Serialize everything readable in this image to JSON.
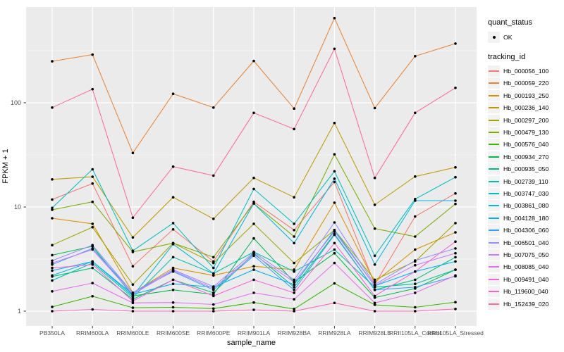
{
  "figure": {
    "xlabel": "sample_name",
    "ylabel": "FPKM + 1",
    "legend_title_1": "quant_status",
    "legend_item_1": "OK",
    "legend_title_2": "tracking_id"
  },
  "colors": {
    "panel_background": "#EBEBEB",
    "gridline": "#FFFFFF",
    "axis_text": "#4D4D4D",
    "tick_mark": "#333333",
    "point": "#000000",
    "legend_key_background": "#F2F2F2"
  },
  "chart_data": {
    "type": "line",
    "title": "",
    "xlabel": "sample_name",
    "ylabel": "FPKM + 1",
    "y_scale": "log10",
    "y_ticks": [
      1,
      10,
      100
    ],
    "y_minor_ticks": [
      3.162,
      31.62,
      316.2
    ],
    "ylim": [
      0.72,
      830
    ],
    "grid": true,
    "legend_position": "right",
    "quant_status_values": [
      "OK"
    ],
    "categories": [
      "PB350LA",
      "RRIM600LA",
      "RRIM600LE",
      "RRIM600SE",
      "RRIM600PE",
      "RRIM901LA",
      "RRIM928BA",
      "RRIM928LA",
      "RRIM928LE",
      "RRII105LA_Control",
      "RRII105LA_Stressed"
    ],
    "series": [
      {
        "name": "Hb_000056_100",
        "color": "#F8766D",
        "values": [
          11.8,
          16.8,
          2.7,
          6.1,
          3.0,
          11.2,
          6.0,
          17.4,
          1.8,
          8.1,
          13.5
        ]
      },
      {
        "name": "Hb_000059_220",
        "color": "#EA8331",
        "values": [
          250,
          290,
          33,
          122,
          90,
          252,
          88,
          650,
          89,
          280,
          370
        ]
      },
      {
        "name": "Hb_000193_250",
        "color": "#D89000",
        "values": [
          7.8,
          6.9,
          1.5,
          2.6,
          2.2,
          2.7,
          2.5,
          11.0,
          1.9,
          3.9,
          5.7
        ]
      },
      {
        "name": "Hb_000236_140",
        "color": "#C09B00",
        "values": [
          18.4,
          19.5,
          5.1,
          12.4,
          7.7,
          19.0,
          12.4,
          64,
          10.5,
          19.6,
          24
        ]
      },
      {
        "name": "Hb_000297_200",
        "color": "#A3A500",
        "values": [
          4.3,
          6.4,
          1.8,
          4.5,
          2.9,
          6.9,
          2.9,
          6.0,
          2.0,
          3.0,
          7.0
        ]
      },
      {
        "name": "Hb_000479_130",
        "color": "#7CAE00",
        "values": [
          9.4,
          11.2,
          3.7,
          4.5,
          3.3,
          10.8,
          5.2,
          32,
          6.2,
          5.2,
          10.7
        ]
      },
      {
        "name": "Hb_000576_040",
        "color": "#39B600",
        "values": [
          1.1,
          1.39,
          1.08,
          1.09,
          1.06,
          1.21,
          1.05,
          1.85,
          1.15,
          1.09,
          1.22
        ]
      },
      {
        "name": "Hb_000934_270",
        "color": "#00BB4E",
        "values": [
          3.45,
          4.2,
          1.4,
          1.6,
          1.45,
          5.0,
          1.9,
          3.6,
          1.35,
          1.65,
          2.5
        ]
      },
      {
        "name": "Hb_000935_050",
        "color": "#00BF7D",
        "values": [
          2.15,
          2.6,
          1.3,
          2.0,
          1.5,
          3.6,
          1.7,
          5.5,
          1.6,
          2.0,
          3.3
        ]
      },
      {
        "name": "Hb_002739_110",
        "color": "#00C1A3",
        "values": [
          1.97,
          2.9,
          1.35,
          3.3,
          2.3,
          3.7,
          2.4,
          3.9,
          1.7,
          1.83,
          2.5
        ]
      },
      {
        "name": "Hb_003747_030",
        "color": "#00BFC4",
        "values": [
          9.8,
          23,
          3.8,
          7.0,
          2.6,
          14.9,
          6.9,
          22,
          3.4,
          11.9,
          19.3
        ]
      },
      {
        "name": "Hb_003861_080",
        "color": "#00BAE0",
        "values": [
          2.2,
          3.0,
          1.4,
          4.4,
          2.3,
          10.8,
          4.5,
          18.7,
          2.8,
          11.5,
          11.5
        ]
      },
      {
        "name": "Hb_004128_180",
        "color": "#00B0F6",
        "values": [
          2.45,
          3.0,
          1.45,
          1.83,
          1.7,
          2.5,
          1.8,
          6.0,
          1.75,
          2.4,
          3.0
        ]
      },
      {
        "name": "Hb_004306_060",
        "color": "#35A2FF",
        "values": [
          2.8,
          4.0,
          1.5,
          2.4,
          1.6,
          3.4,
          1.6,
          5.4,
          1.6,
          1.7,
          2.16
        ]
      },
      {
        "name": "Hb_006501_040",
        "color": "#9590FF",
        "values": [
          3.05,
          4.3,
          1.5,
          2.5,
          1.72,
          3.67,
          2.0,
          7.1,
          1.8,
          3.06,
          4.0
        ]
      },
      {
        "name": "Hb_007075_050",
        "color": "#C77CFF",
        "values": [
          2.9,
          3.9,
          1.45,
          2.45,
          1.65,
          3.5,
          1.9,
          5.8,
          1.75,
          2.76,
          3.6
        ]
      },
      {
        "name": "Hb_008085_040",
        "color": "#E76BF3",
        "values": [
          1.55,
          1.86,
          1.2,
          1.21,
          1.16,
          1.5,
          1.3,
          2.9,
          1.2,
          1.5,
          2.2
        ]
      },
      {
        "name": "Hb_009491_040",
        "color": "#FA62DB",
        "values": [
          2.6,
          2.8,
          1.25,
          2.0,
          1.4,
          2.0,
          1.5,
          4.5,
          1.4,
          2.4,
          4.65
        ]
      },
      {
        "name": "Hb_119600_040",
        "color": "#FF62BC",
        "values": [
          1.0,
          1.04,
          1.0,
          1.0,
          1.0,
          1.03,
          1.0,
          1.2,
          1.0,
          1.0,
          1.05
        ]
      },
      {
        "name": "Hb_152439_020",
        "color": "#FF6A98",
        "values": [
          90,
          135,
          7.9,
          24.4,
          20,
          80,
          56,
          330,
          19,
          80,
          139
        ]
      }
    ]
  }
}
